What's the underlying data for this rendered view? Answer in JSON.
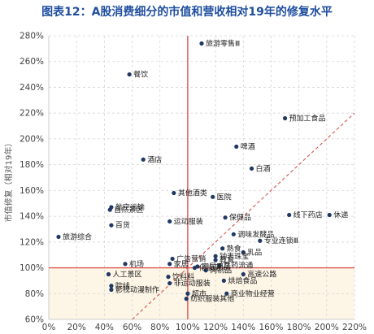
{
  "chart_data": {
    "type": "scatter",
    "title": "图表12：A股消费细分的市值和营收相对19年的修复水平",
    "xlabel": "",
    "ylabel": "市值修复（相对19年）",
    "xlim": [
      0,
      220
    ],
    "ylim": [
      60,
      280
    ],
    "x_ticks": [
      "0%",
      "20%",
      "40%",
      "60%",
      "80%",
      "100%",
      "120%",
      "140%",
      "160%",
      "180%",
      "200%",
      "220%"
    ],
    "y_ticks": [
      "60%",
      "80%",
      "100%",
      "120%",
      "140%",
      "160%",
      "180%",
      "200%",
      "220%",
      "240%",
      "260%",
      "280%"
    ],
    "reference": {
      "x": 100,
      "y": 100
    },
    "grid": true,
    "colors": {
      "point": "#1f3864",
      "reference": "#d9534f",
      "shade": "#fdf6e6",
      "title": "#1f4e9e"
    },
    "points": [
      {
        "name": "旅游零售Ⅲ",
        "x": 110,
        "y": 274
      },
      {
        "name": "餐饮",
        "x": 58,
        "y": 250
      },
      {
        "name": "预加工食品",
        "x": 170,
        "y": 216
      },
      {
        "name": "啤酒",
        "x": 135,
        "y": 194
      },
      {
        "name": "酒店",
        "x": 68,
        "y": 184
      },
      {
        "name": "白酒",
        "x": 146,
        "y": 177
      },
      {
        "name": "其他酒类",
        "x": 90,
        "y": 158
      },
      {
        "name": "医院",
        "x": 118,
        "y": 155
      },
      {
        "name": "自然景区",
        "x": 44,
        "y": 145
      },
      {
        "name": "航空运输",
        "x": 45,
        "y": 147
      },
      {
        "name": "线下药店",
        "x": 173,
        "y": 141
      },
      {
        "name": "休递",
        "x": 202,
        "y": 141
      },
      {
        "name": "保健品",
        "x": 127,
        "y": 139
      },
      {
        "name": "运动服装",
        "x": 87,
        "y": 136
      },
      {
        "name": "百货",
        "x": 45,
        "y": 133
      },
      {
        "name": "旅游综合",
        "x": 7,
        "y": 124
      },
      {
        "name": "调味发酵品",
        "x": 133,
        "y": 126
      },
      {
        "name": "专业连锁Ⅲ",
        "x": 152,
        "y": 121
      },
      {
        "name": "熟食",
        "x": 125,
        "y": 115
      },
      {
        "name": "乳品",
        "x": 140,
        "y": 112
      },
      {
        "name": "广告营销",
        "x": 89,
        "y": 107
      },
      {
        "name": "钟表珠宝",
        "x": 120,
        "y": 109
      },
      {
        "name": "教育",
        "x": 120,
        "y": 106
      },
      {
        "name": "家居",
        "x": 87,
        "y": 103
      },
      {
        "name": "化妆品",
        "x": 105,
        "y": 100
      },
      {
        "name": "家居用品",
        "x": 107,
        "y": 101
      },
      {
        "name": "机场",
        "x": 55,
        "y": 103
      },
      {
        "name": "医药流通",
        "x": 123,
        "y": 102
      },
      {
        "name": "肉制品",
        "x": 113,
        "y": 98
      },
      {
        "name": "人工景区",
        "x": 43,
        "y": 95
      },
      {
        "name": "高速公路",
        "x": 140,
        "y": 95
      },
      {
        "name": "饮料料",
        "x": 86,
        "y": 93
      },
      {
        "name": "烘焙食品",
        "x": 126,
        "y": 90
      },
      {
        "name": "非运动服装",
        "x": 87,
        "y": 88
      },
      {
        "name": "院线",
        "x": 45,
        "y": 86
      },
      {
        "name": "影视动漫制作",
        "x": 45,
        "y": 83
      },
      {
        "name": "超市",
        "x": 100,
        "y": 80
      },
      {
        "name": "商业物业经营",
        "x": 128,
        "y": 80
      },
      {
        "name": "纺织服装其他",
        "x": 99,
        "y": 76
      }
    ]
  }
}
